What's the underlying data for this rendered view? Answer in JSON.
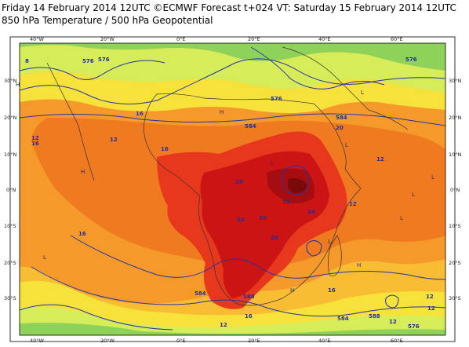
{
  "header": {
    "line1": "Friday 14 February 2014 12UTC ©ECMWF Forecast t+024 VT: Saturday 15 February 2014 12UTC",
    "line2": "850 hPa Temperature / 500 hPa Geopotential"
  },
  "axes": {
    "lon_top": [
      "40°W",
      "20°W",
      "0°E",
      "20°E",
      "40°E",
      "60°E"
    ],
    "lon_bottom": [
      "40°W",
      "20°W",
      "0°E",
      "20°E",
      "40°E",
      "60°E"
    ],
    "lat_left": [
      "30°N",
      "20°N",
      "10°N",
      "0°N",
      "10°S",
      "20°S",
      "30°S"
    ],
    "lat_right": [
      "30°N",
      "20°N",
      "10°N",
      "0°N",
      "10°S",
      "20°S",
      "30°S"
    ]
  },
  "contour_labels": [
    "16",
    "12",
    "20",
    "24",
    "20",
    "12",
    "16",
    "16",
    "16",
    "20",
    "12",
    "12",
    "20",
    "24",
    "20",
    "16",
    "12",
    "16",
    "12",
    "12",
    "12",
    "8",
    "584",
    "576",
    "576",
    "576",
    "576",
    "584",
    "584",
    "588",
    "588",
    "584",
    "576"
  ],
  "pressure_markers": [
    "H",
    "H",
    "L",
    "L",
    "L",
    "L",
    "H",
    "L",
    "L",
    "H",
    "L",
    "L",
    "H"
  ],
  "colors": {
    "temp_bands": [
      "#8fd25a",
      "#d7ec59",
      "#f6e23a",
      "#f9bd34",
      "#f59a2a",
      "#ef7a1f",
      "#e7371c",
      "#cc1414",
      "#a50d10",
      "#7a0a0a"
    ],
    "geopotential_lines": "#2234a8",
    "frame": "#000000"
  }
}
